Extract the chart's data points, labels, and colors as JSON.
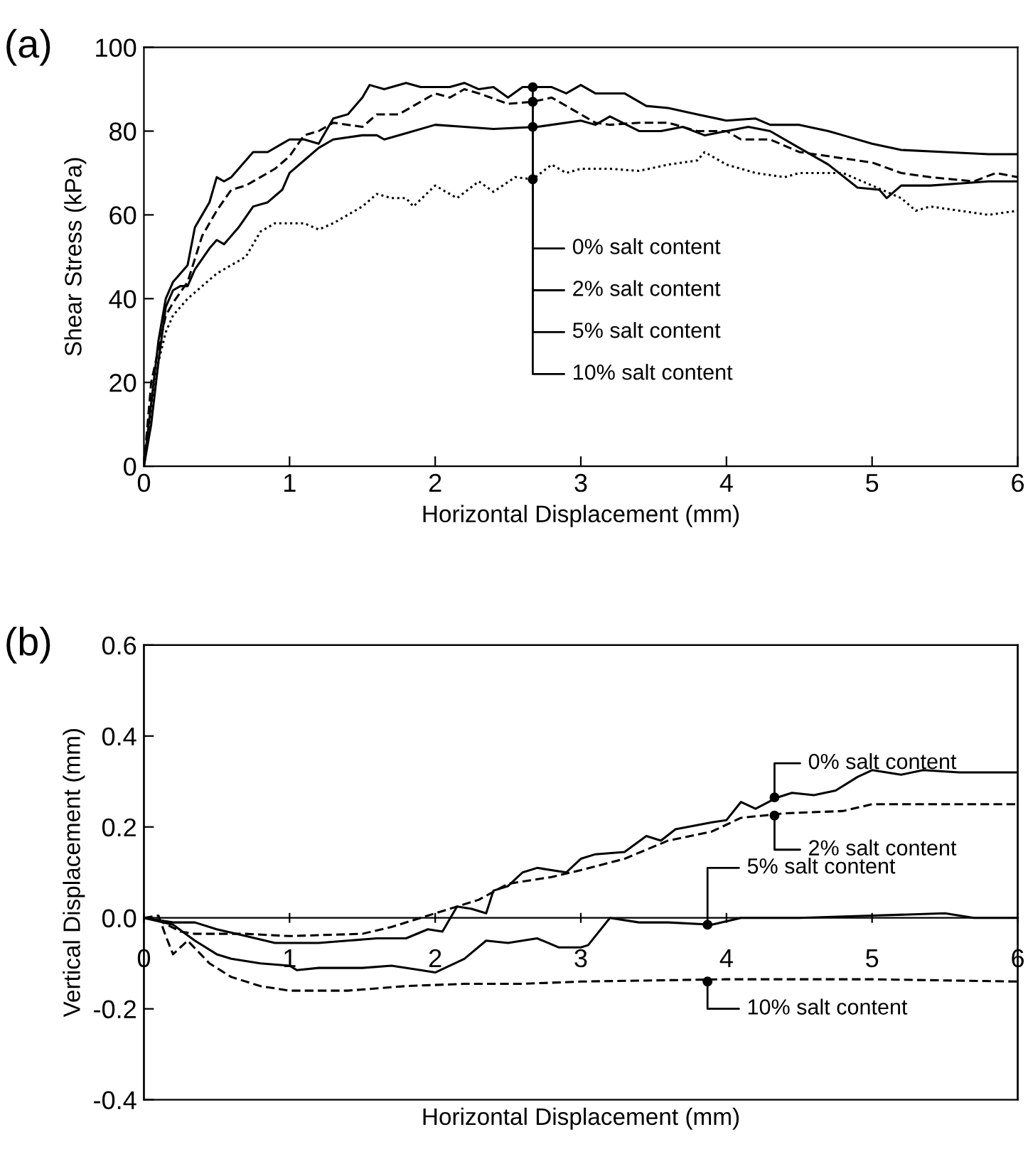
{
  "chart_data": [
    {
      "type": "line",
      "title": "(a)",
      "xlabel": "Horizontal Displacement (mm)",
      "ylabel": "Shear Stress (kPa)",
      "xlim": [
        0,
        6
      ],
      "ylim": [
        0,
        100
      ],
      "xticks": [
        0,
        1,
        2,
        3,
        4,
        5,
        6
      ],
      "yticks": [
        0,
        20,
        40,
        60,
        80,
        100
      ],
      "grid": false,
      "legend": false,
      "marker": "none",
      "series": [
        {
          "color": "#000000",
          "line_style": "solid",
          "x": [
            0,
            0.05,
            0.1,
            0.15,
            0.2,
            0.25,
            0.3,
            0.35,
            0.4,
            0.45,
            0.5,
            0.55,
            0.6,
            0.7,
            0.75,
            0.85,
            0.95,
            1.0,
            1.1,
            1.2,
            1.3,
            1.4,
            1.5,
            1.55,
            1.65,
            1.8,
            1.9,
            2.1,
            2.2,
            2.3,
            2.4,
            2.5,
            2.6,
            2.8,
            2.9,
            3.0,
            3.1,
            3.3,
            3.45,
            3.6,
            3.8,
            4.0,
            4.2,
            4.3,
            4.5,
            4.7,
            4.8,
            5.0,
            5.2,
            5.5,
            5.8,
            6
          ],
          "values": [
            0,
            15,
            30,
            40,
            44,
            46,
            48,
            57,
            60,
            63,
            69,
            68,
            69,
            73,
            75,
            75,
            77,
            78,
            78,
            77,
            83,
            84,
            88,
            91,
            90,
            91.5,
            90.5,
            90.5,
            91.5,
            90,
            90.5,
            88,
            90.5,
            90.5,
            89,
            91,
            89,
            89,
            86,
            85.5,
            84,
            82.5,
            83,
            81.5,
            81.5,
            80,
            79,
            77,
            75.5,
            75,
            74.5,
            74.5
          ]
        },
        {
          "color": "#000000",
          "line_style": "dashed",
          "x": [
            0,
            0.05,
            0.1,
            0.15,
            0.2,
            0.3,
            0.4,
            0.5,
            0.6,
            0.7,
            0.8,
            0.9,
            1.0,
            1.1,
            1.2,
            1.3,
            1.5,
            1.6,
            1.75,
            1.85,
            2.0,
            2.1,
            2.2,
            2.3,
            2.5,
            2.67,
            2.8,
            3.0,
            3.1,
            3.2,
            3.4,
            3.6,
            3.8,
            4.0,
            4.1,
            4.3,
            4.5,
            4.7,
            4.9,
            5.0,
            5.2,
            5.4,
            5.7,
            5.85,
            6
          ],
          "values": [
            0,
            20,
            28,
            36,
            39,
            44,
            55,
            61,
            66,
            67,
            69,
            71,
            74,
            79,
            80,
            82,
            81,
            84,
            84,
            86,
            89,
            88,
            90,
            89,
            86.5,
            87,
            88,
            84,
            82,
            81.5,
            82,
            82,
            80,
            80,
            78,
            78,
            75,
            74,
            73,
            72.5,
            70,
            69,
            68,
            70,
            69
          ]
        },
        {
          "color": "#000000",
          "line_style": "solid",
          "x": [
            0,
            0.05,
            0.1,
            0.15,
            0.2,
            0.25,
            0.3,
            0.35,
            0.45,
            0.5,
            0.55,
            0.65,
            0.75,
            0.85,
            0.95,
            1.0,
            1.1,
            1.2,
            1.3,
            1.5,
            1.6,
            1.65,
            1.8,
            2.0,
            2.2,
            2.4,
            2.7,
            3.0,
            3.1,
            3.2,
            3.4,
            3.55,
            3.7,
            3.85,
            4.0,
            4.15,
            4.3,
            4.5,
            4.7,
            4.9,
            5.05,
            5.1,
            5.2,
            5.4,
            5.6,
            5.8,
            6
          ],
          "values": [
            0,
            10,
            25,
            38,
            42,
            43,
            43,
            47,
            52,
            54,
            53,
            57,
            62,
            63,
            66,
            70,
            73,
            76,
            78,
            79,
            79,
            78,
            79.5,
            81.5,
            81,
            80.5,
            81,
            82.5,
            81.5,
            83.5,
            80,
            80,
            81,
            79,
            80,
            81,
            80,
            76,
            72,
            66.5,
            66,
            64,
            67,
            67,
            67.5,
            68,
            68
          ]
        },
        {
          "color": "#000000",
          "line_style": "dotted",
          "x": [
            0,
            0.05,
            0.1,
            0.15,
            0.2,
            0.3,
            0.4,
            0.5,
            0.6,
            0.7,
            0.8,
            0.9,
            1.0,
            1.1,
            1.2,
            1.3,
            1.4,
            1.5,
            1.6,
            1.7,
            1.8,
            1.85,
            2.0,
            2.15,
            2.3,
            2.4,
            2.55,
            2.67,
            2.8,
            2.9,
            3.0,
            3.2,
            3.4,
            3.6,
            3.8,
            3.85,
            4.0,
            4.2,
            4.4,
            4.5,
            4.8,
            5.0,
            5.2,
            5.3,
            5.4,
            5.6,
            5.8,
            6
          ],
          "values": [
            0,
            12,
            25,
            32,
            36,
            40,
            43,
            46,
            48,
            50,
            56,
            58,
            58,
            58,
            56.5,
            58,
            60,
            62,
            65,
            64,
            64,
            62,
            67,
            64,
            68,
            65.5,
            69,
            68.5,
            72,
            70,
            71,
            71,
            70.5,
            72,
            73,
            75,
            72,
            70,
            69,
            70,
            70,
            67,
            64,
            61,
            62,
            61,
            60,
            61
          ]
        }
      ],
      "annotations": [
        {
          "text": "0% salt content",
          "x": 2.67,
          "y": 90.5
        },
        {
          "text": "2% salt content",
          "x": 2.67,
          "y": 87
        },
        {
          "text": "5% salt content",
          "x": 2.67,
          "y": 81
        },
        {
          "text": "10% salt content",
          "x": 2.67,
          "y": 68.5
        }
      ]
    },
    {
      "type": "line",
      "title": "(b)",
      "xlabel": "Horizontal Displacement (mm)",
      "ylabel": "Vertical Displacement (mm)",
      "xlim": [
        0,
        6
      ],
      "ylim": [
        -0.4,
        0.6
      ],
      "xticks": [
        0,
        1,
        2,
        3,
        4,
        5,
        6
      ],
      "yticks": [
        {
          "value": -0.4,
          "label": "-0.4"
        },
        {
          "value": -0.2,
          "label": "-0.2"
        },
        {
          "value": 0,
          "label": "0.0"
        },
        {
          "value": 0.2,
          "label": "0.2"
        },
        {
          "value": 0.4,
          "label": "0.4"
        },
        {
          "value": 0.6,
          "label": "0.6"
        }
      ],
      "grid": false,
      "legend": false,
      "marker": "none",
      "series": [
        {
          "color": "#000000",
          "line_style": "solid",
          "x": [
            0,
            0.2,
            0.35,
            0.5,
            0.7,
            0.9,
            1.2,
            1.4,
            1.6,
            1.8,
            1.95,
            2.05,
            2.15,
            2.25,
            2.35,
            2.4,
            2.5,
            2.6,
            2.7,
            2.9,
            3.0,
            3.1,
            3.3,
            3.45,
            3.55,
            3.65,
            3.9,
            4.0,
            4.1,
            4.2,
            4.35,
            4.45,
            4.6,
            4.75,
            4.9,
            5.0,
            5.2,
            5.35,
            5.6,
            6
          ],
          "values": [
            0,
            -0.01,
            -0.01,
            -0.025,
            -0.04,
            -0.055,
            -0.055,
            -0.05,
            -0.045,
            -0.045,
            -0.025,
            -0.03,
            0.025,
            0.02,
            0.01,
            0.06,
            0.07,
            0.1,
            0.11,
            0.1,
            0.13,
            0.14,
            0.145,
            0.18,
            0.17,
            0.195,
            0.21,
            0.215,
            0.255,
            0.24,
            0.265,
            0.275,
            0.27,
            0.28,
            0.31,
            0.325,
            0.315,
            0.325,
            0.32,
            0.32
          ]
        },
        {
          "color": "#000000",
          "line_style": "dashed",
          "x": [
            0,
            0.1,
            0.25,
            0.35,
            0.7,
            1.0,
            1.5,
            1.7,
            1.9,
            2.1,
            2.3,
            2.5,
            2.8,
            3.0,
            3.3,
            3.6,
            3.9,
            4.1,
            4.4,
            4.8,
            5.0,
            6
          ],
          "values": [
            0,
            -0.005,
            -0.03,
            -0.035,
            -0.035,
            -0.04,
            -0.035,
            -0.02,
            0,
            0.02,
            0.04,
            0.075,
            0.09,
            0.105,
            0.13,
            0.17,
            0.19,
            0.22,
            0.23,
            0.235,
            0.25,
            0.25
          ]
        },
        {
          "color": "#000000",
          "line_style": "solid",
          "x": [
            0,
            0.2,
            0.35,
            0.5,
            0.6,
            0.8,
            1.0,
            1.05,
            1.2,
            1.5,
            1.7,
            1.9,
            2.0,
            2.2,
            2.35,
            2.5,
            2.7,
            2.85,
            3.0,
            3.05,
            3.2,
            3.4,
            3.6,
            3.9,
            4.1,
            4.5,
            5.0,
            5.5,
            5.7,
            6
          ],
          "values": [
            0,
            -0.015,
            -0.05,
            -0.08,
            -0.09,
            -0.1,
            -0.105,
            -0.115,
            -0.11,
            -0.11,
            -0.105,
            -0.115,
            -0.12,
            -0.09,
            -0.05,
            -0.055,
            -0.045,
            -0.065,
            -0.065,
            -0.06,
            0,
            -0.01,
            -0.01,
            -0.015,
            0,
            0,
            0.005,
            0.01,
            0,
            0
          ]
        },
        {
          "color": "#000000",
          "line_style": "dashed",
          "x": [
            0,
            0.1,
            0.15,
            0.2,
            0.3,
            0.45,
            0.6,
            0.8,
            1.0,
            1.4,
            1.8,
            2.2,
            2.6,
            3.0,
            4.0,
            5.0,
            6
          ],
          "values": [
            0,
            0.005,
            -0.04,
            -0.08,
            -0.05,
            -0.1,
            -0.13,
            -0.15,
            -0.16,
            -0.16,
            -0.15,
            -0.145,
            -0.145,
            -0.14,
            -0.135,
            -0.135,
            -0.14
          ]
        }
      ],
      "annotations": [
        {
          "text": "0% salt content",
          "x": 4.33,
          "y": 0.265
        },
        {
          "text": "2% salt content",
          "x": 4.33,
          "y": 0.225
        },
        {
          "text": "5% salt content",
          "x": 3.87,
          "y": -0.015
        },
        {
          "text": "10% salt content",
          "x": 3.87,
          "y": -0.14
        }
      ]
    }
  ]
}
